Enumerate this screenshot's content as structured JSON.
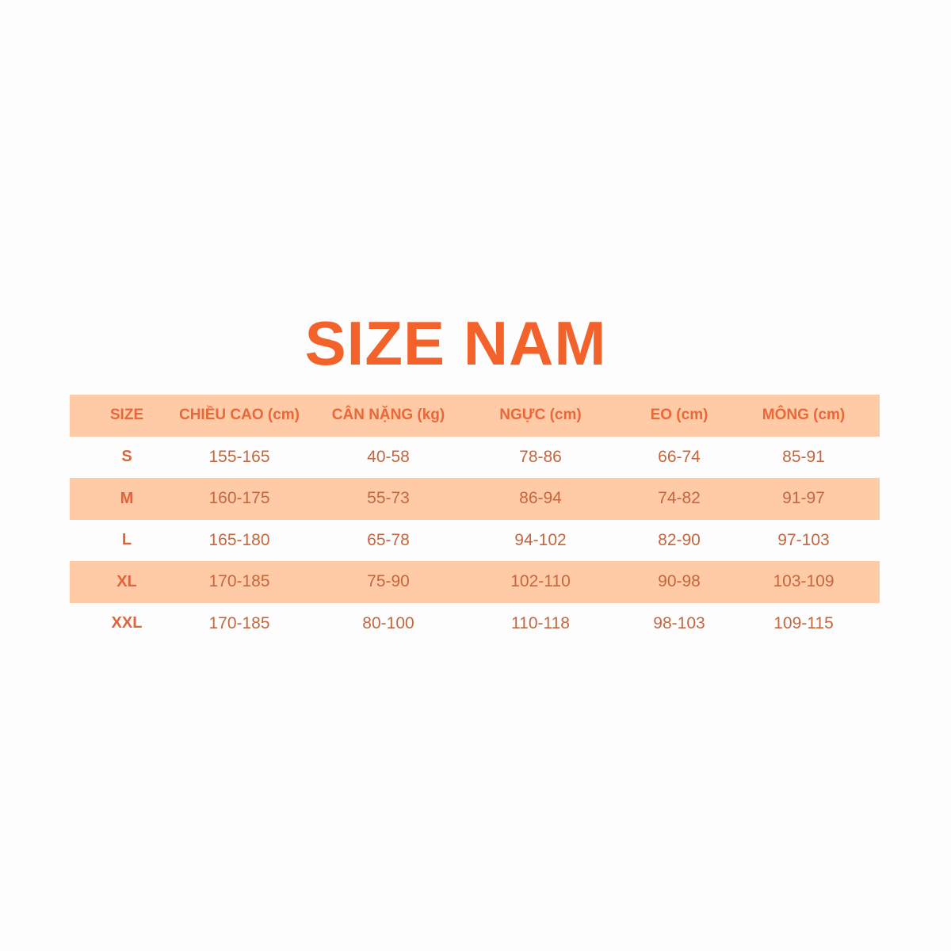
{
  "title": "SIZE NAM",
  "colors": {
    "accent": "#f4622b",
    "row_shade": "#ffcaa6"
  },
  "table": {
    "headers": [
      "SIZE",
      "CHIỀU CAO (cm)",
      "CÂN NẶNG (kg)",
      "NGỰC (cm)",
      "EO (cm)",
      "MÔNG (cm)"
    ],
    "rows": [
      [
        "S",
        "155-165",
        "40-58",
        "78-86",
        "66-74",
        "85-91"
      ],
      [
        "M",
        "160-175",
        "55-73",
        "86-94",
        "74-82",
        "91-97"
      ],
      [
        "L",
        "165-180",
        "65-78",
        "94-102",
        "82-90",
        "97-103"
      ],
      [
        "XL",
        "170-185",
        "75-90",
        "102-110",
        "90-98",
        "103-109"
      ],
      [
        "XXL",
        "170-185",
        "80-100",
        "110-118",
        "98-103",
        "109-115"
      ]
    ]
  }
}
